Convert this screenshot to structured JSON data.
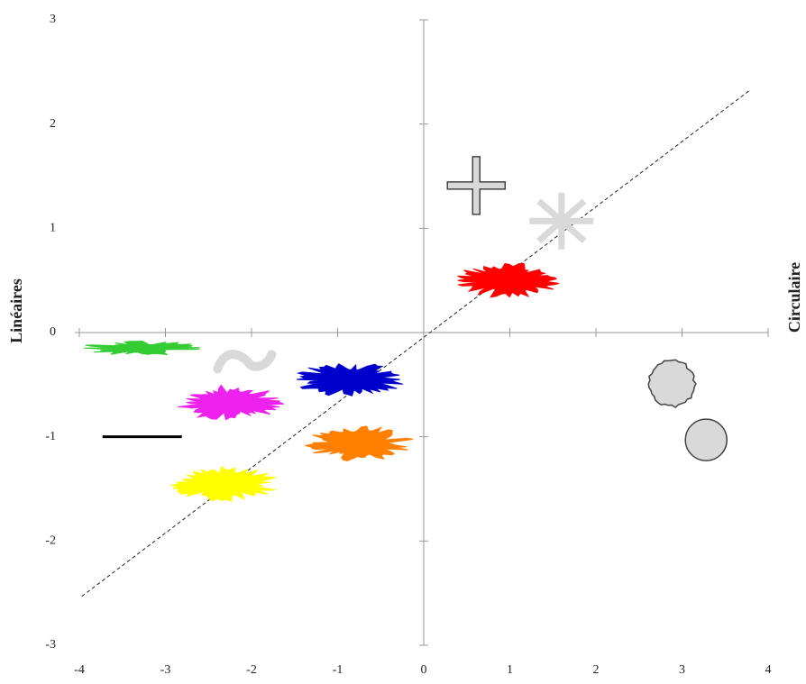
{
  "chart_data": {
    "type": "scatter",
    "xlim": [
      -4,
      4
    ],
    "ylim": [
      -3,
      3
    ],
    "xticks": [
      -4,
      -3,
      -2,
      -1,
      0,
      1,
      2,
      3,
      4
    ],
    "yticks": [
      -3,
      -2,
      -1,
      0,
      1,
      2,
      3
    ],
    "ylabel": "Linéaires",
    "y2label": "Circulaire",
    "trend": {
      "x": [
        -3.97,
        3.78
      ],
      "y": [
        -2.53,
        2.32
      ]
    },
    "shapes": [
      {
        "x": 0.61,
        "y": 1.41,
        "shape": "cross",
        "color": "#d9d9d9"
      },
      {
        "x": 1.6,
        "y": 1.07,
        "shape": "asterisk",
        "color": "#d9d9d9"
      },
      {
        "x": 0.97,
        "y": 0.5,
        "shape": "blob",
        "color": "#ff0000"
      },
      {
        "x": -2.08,
        "y": -0.28,
        "shape": "tilde",
        "color": "#d9d9d9"
      },
      {
        "x": -3.27,
        "y": -0.15,
        "shape": "thin-blob",
        "color": "#33cc33"
      },
      {
        "x": -2.27,
        "y": -0.67,
        "shape": "blob",
        "color": "#ee22ee"
      },
      {
        "x": -0.86,
        "y": -0.45,
        "shape": "blob",
        "color": "#0000cc"
      },
      {
        "x": -3.27,
        "y": -1.0,
        "shape": "line",
        "color": "#000000"
      },
      {
        "x": -0.75,
        "y": -1.07,
        "shape": "blob",
        "color": "#ff8000"
      },
      {
        "x": -2.32,
        "y": -1.45,
        "shape": "blob",
        "color": "#ffff00"
      },
      {
        "x": 2.88,
        "y": -0.49,
        "shape": "gear",
        "color": "#d9d9d9"
      },
      {
        "x": 3.28,
        "y": -1.03,
        "shape": "circle",
        "color": "#d9d9d9"
      }
    ]
  }
}
